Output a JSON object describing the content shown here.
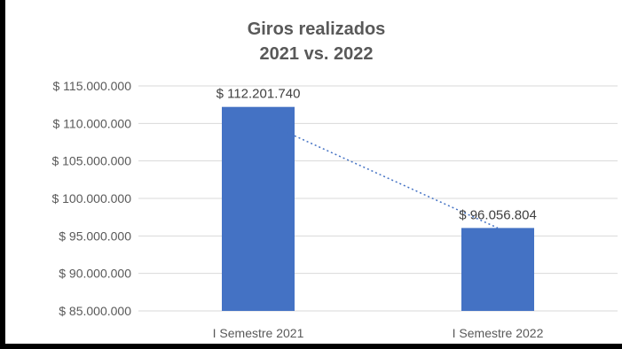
{
  "chart_data": {
    "type": "bar",
    "title": [
      "Giros realizados",
      "2021 vs. 2022"
    ],
    "categories": [
      "I Semestre 2021",
      "I Semestre 2022"
    ],
    "values": [
      112201740,
      96056804
    ],
    "data_labels": [
      "$ 112.201.740",
      "$ 96.056.804"
    ],
    "ylim": [
      85000000,
      115000000
    ],
    "yticks": [
      85000000,
      90000000,
      95000000,
      100000000,
      105000000,
      110000000,
      115000000
    ],
    "ytick_labels": [
      "$ 85.000.000",
      "$ 90.000.000",
      "$ 95.000.000",
      "$ 100.000.000",
      "$ 105.000.000",
      "$ 110.000.000",
      "$ 115.000.000"
    ],
    "grid": true,
    "trendline": "linear dotted",
    "bar_color": "#4472c4",
    "trendline_color": "#4472c4",
    "legend": "none"
  }
}
